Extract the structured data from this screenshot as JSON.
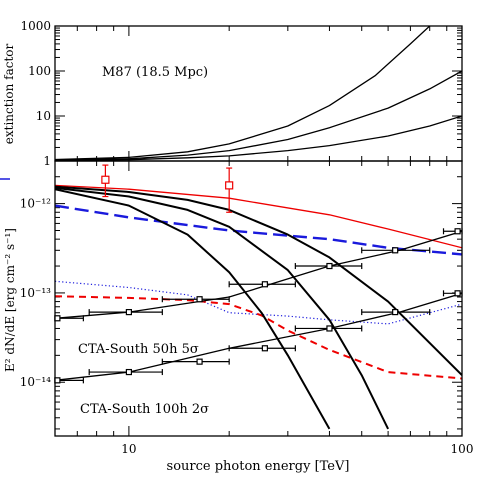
{
  "chart_data": [
    {
      "type": "line",
      "title": "",
      "annotation": "M87 (18.5 Mpc)",
      "xlabel": "",
      "ylabel": "extinction factor",
      "xscale": "log",
      "yscale": "log",
      "xlim": [
        6,
        100
      ],
      "ylim": [
        1,
        1000
      ],
      "yticks": [
        1,
        10,
        100,
        1000
      ],
      "ytick_labels": [
        "1",
        "10",
        "100",
        "1000"
      ],
      "series": [
        {
          "color": "#000000",
          "x": [
            6,
            10,
            15,
            20,
            30,
            40,
            55,
            70,
            80
          ],
          "y": [
            1.08,
            1.2,
            1.6,
            2.4,
            6,
            17,
            80,
            400,
            1000
          ]
        },
        {
          "color": "#000000",
          "x": [
            6,
            10,
            15,
            20,
            30,
            40,
            60,
            80,
            100
          ],
          "y": [
            1.05,
            1.12,
            1.35,
            1.7,
            3,
            5.5,
            15,
            40,
            100
          ]
        },
        {
          "color": "#000000",
          "x": [
            6,
            10,
            15,
            20,
            30,
            40,
            60,
            80,
            100
          ],
          "y": [
            1.03,
            1.07,
            1.18,
            1.3,
            1.7,
            2.2,
            3.6,
            6,
            10
          ]
        }
      ]
    },
    {
      "type": "line",
      "title": "",
      "xlabel": "source photon energy [TeV]",
      "ylabel": "E² dN/dE  [erg cm⁻² s⁻¹]",
      "xscale": "log",
      "yscale": "log",
      "xlim": [
        6,
        100
      ],
      "ylim": [
        2.5e-15,
        3e-12
      ],
      "xticks": [
        10,
        100
      ],
      "xtick_labels": [
        "10",
        "100"
      ],
      "yticks": [
        1e-14,
        1e-13,
        1e-12
      ],
      "ytick_labels": [
        "10⁻¹⁴",
        "10⁻¹³",
        "10⁻¹²"
      ],
      "annotations": [
        "CTA-South 50h 5σ",
        "CTA-South 100h 2σ"
      ],
      "series": [
        {
          "style": "solid-thin",
          "color": "#ee0000",
          "x": [
            6,
            10,
            20,
            40,
            60,
            100
          ],
          "y": [
            1.6e-12,
            1.45e-12,
            1.15e-12,
            7.5e-13,
            5.2e-13,
            3.2e-13
          ]
        },
        {
          "style": "long-dash",
          "color": "#1a1adc",
          "x": [
            6,
            10,
            20,
            40,
            60,
            100
          ],
          "y": [
            9.5e-13,
            7e-13,
            5e-13,
            4e-13,
            3.2e-13,
            2.7e-13
          ]
        },
        {
          "style": "dotted",
          "color": "#1a1adc",
          "x": [
            6,
            10,
            15,
            20,
            30,
            40,
            60,
            100
          ],
          "y": [
            1.35e-13,
            1.15e-13,
            9.5e-14,
            6e-14,
            5.5e-14,
            5e-14,
            4.5e-14,
            7.5e-14
          ]
        },
        {
          "style": "dashed",
          "color": "#ee0000",
          "x": [
            6,
            10,
            15,
            20,
            25,
            30,
            40,
            60,
            100
          ],
          "y": [
            9.2e-14,
            8.8e-14,
            8.3e-14,
            7.5e-14,
            5.6e-14,
            3.8e-14,
            2.3e-14,
            1.3e-14,
            1.1e-14
          ]
        },
        {
          "style": "solid-thick",
          "color": "#000000",
          "x": [
            6,
            10,
            15,
            20,
            30,
            40,
            60,
            100
          ],
          "y": [
            1.55e-12,
            1.35e-12,
            1.1e-12,
            8.5e-13,
            4.5e-13,
            2.5e-13,
            8e-14,
            1.2e-14
          ]
        },
        {
          "style": "solid-thick",
          "color": "#000000",
          "x": [
            6,
            10,
            15,
            20,
            30,
            40,
            50,
            60
          ],
          "y": [
            1.5e-12,
            1.2e-12,
            8.5e-13,
            5.5e-13,
            1.8e-13,
            5e-14,
            1.2e-14,
            3e-15
          ]
        },
        {
          "style": "solid-thick",
          "color": "#000000",
          "x": [
            6,
            10,
            15,
            20,
            25,
            30,
            40
          ],
          "y": [
            1.45e-12,
            9.5e-13,
            4.5e-13,
            1.7e-13,
            6e-14,
            2e-14,
            3e-15
          ]
        },
        {
          "style": "solid-thin",
          "color": "#000000",
          "x": [
            6,
            10,
            20,
            40,
            65,
            100
          ],
          "y": [
            5.2e-14,
            6.1e-14,
            9e-14,
            2e-13,
            3e-13,
            4.9e-13
          ]
        },
        {
          "style": "solid-thin",
          "color": "#000000",
          "x": [
            6,
            10,
            20,
            40,
            65,
            100
          ],
          "y": [
            1.05e-14,
            1.3e-14,
            2.4e-14,
            4e-14,
            6.1e-14,
            9.9e-14
          ]
        }
      ],
      "points": [
        {
          "color": "#ee0000",
          "x": 8.5,
          "y": 1.85e-12,
          "ylo": 1.2e-12,
          "yhi": 2.7e-12
        },
        {
          "color": "#ee0000",
          "x": 20,
          "y": 1.6e-12,
          "ylo": 8e-13,
          "yhi": 2.5e-12
        },
        {
          "color": "#000000",
          "x": 6.1,
          "y": 5.2e-14,
          "xlo": 6,
          "xhi": 7.3
        },
        {
          "color": "#000000",
          "x": 10,
          "y": 6.1e-14,
          "xlo": 7.6,
          "xhi": 12.6
        },
        {
          "color": "#000000",
          "x": 16.3,
          "y": 8.5e-14,
          "xlo": 12.6,
          "xhi": 20
        },
        {
          "color": "#000000",
          "x": 25.6,
          "y": 1.25e-13,
          "xlo": 20,
          "xhi": 31.6
        },
        {
          "color": "#000000",
          "x": 40,
          "y": 2e-13,
          "xlo": 31.6,
          "xhi": 50
        },
        {
          "color": "#000000",
          "x": 63,
          "y": 3e-13,
          "xlo": 50,
          "xhi": 80
        },
        {
          "color": "#000000",
          "x": 97,
          "y": 4.9e-13,
          "xlo": 88,
          "xhi": 100
        },
        {
          "color": "#000000",
          "x": 6.1,
          "y": 1.05e-14,
          "xlo": 6,
          "xhi": 7.3
        },
        {
          "color": "#000000",
          "x": 10,
          "y": 1.3e-14,
          "xlo": 7.6,
          "xhi": 12.6
        },
        {
          "color": "#000000",
          "x": 16.3,
          "y": 1.7e-14,
          "xlo": 12.6,
          "xhi": 20
        },
        {
          "color": "#000000",
          "x": 25.6,
          "y": 2.4e-14,
          "xlo": 20,
          "xhi": 31.6
        },
        {
          "color": "#000000",
          "x": 40,
          "y": 4e-14,
          "xlo": 31.6,
          "xhi": 50
        },
        {
          "color": "#000000",
          "x": 63,
          "y": 6.1e-14,
          "xlo": 50,
          "xhi": 80
        },
        {
          "color": "#000000",
          "x": 97,
          "y": 9.9e-14,
          "xlo": 88,
          "xhi": 100
        }
      ]
    }
  ]
}
